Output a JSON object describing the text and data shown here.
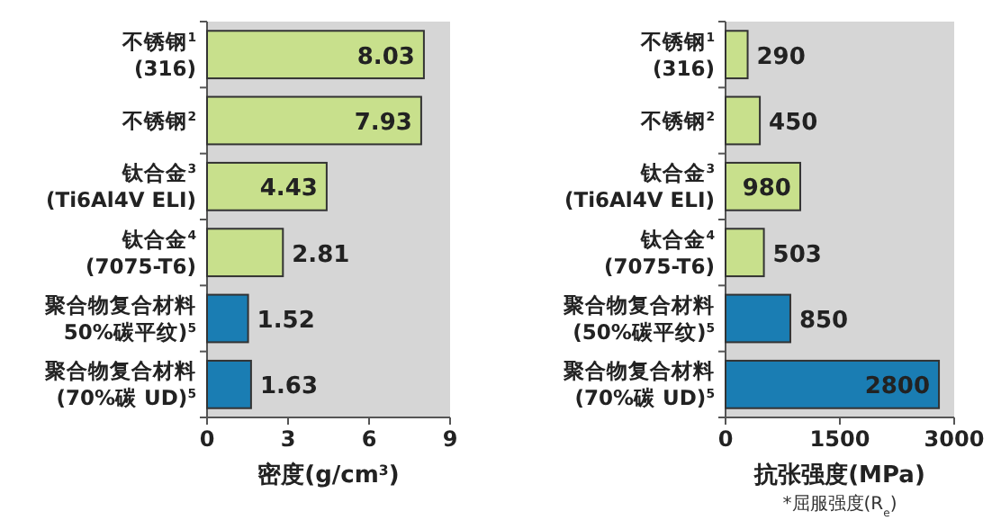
{
  "chart_data": [
    {
      "type": "bar",
      "orientation": "horizontal",
      "categories": [
        "不锈钢$^{1}$\n(316)",
        "不锈钢$^{2}$",
        "钛合金$^{3}$\n(Ti6Al4V ELI)",
        "钛合金$^{4}$\n(7075-T6)",
        "聚合物复合材料\n50%碳平纹)$^{5}$",
        "聚合物复合材料\n(70%碳 UD)$^{5}$"
      ],
      "values": [
        8.03,
        7.93,
        4.43,
        2.81,
        1.52,
        1.63
      ],
      "colors": [
        "#c8e08c",
        "#c8e08c",
        "#c8e08c",
        "#c8e08c",
        "#1a7db3",
        "#1a7db3"
      ],
      "xlim": [
        0,
        9
      ],
      "xticks": [
        0,
        3,
        6,
        9
      ],
      "xlabel": "密度(g/cm$^{3}$)",
      "data_labels": true
    },
    {
      "type": "bar",
      "orientation": "horizontal",
      "categories": [
        "不锈钢$^{1}$\n(316)",
        "不锈钢$^{2}$",
        "钛合金$^{3}$\n(Ti6Al4V ELI)",
        "钛合金$^{4}$\n(7075-T6)",
        "聚合物复合材料\n(50%碳平纹)$^{5}$",
        "聚合物复合材料\n(70%碳 UD)$^{5}$"
      ],
      "values": [
        290,
        450,
        980,
        503,
        850,
        2800
      ],
      "colors": [
        "#c8e08c",
        "#c8e08c",
        "#c8e08c",
        "#c8e08c",
        "#1a7db3",
        "#1a7db3"
      ],
      "xlim": [
        0,
        3000
      ],
      "xticks": [
        0,
        1500,
        3000
      ],
      "xlabel": "抗张强度(MPa)",
      "data_labels": true,
      "annotations": [
        "*屈服强度(R$_{e}$)"
      ]
    }
  ]
}
